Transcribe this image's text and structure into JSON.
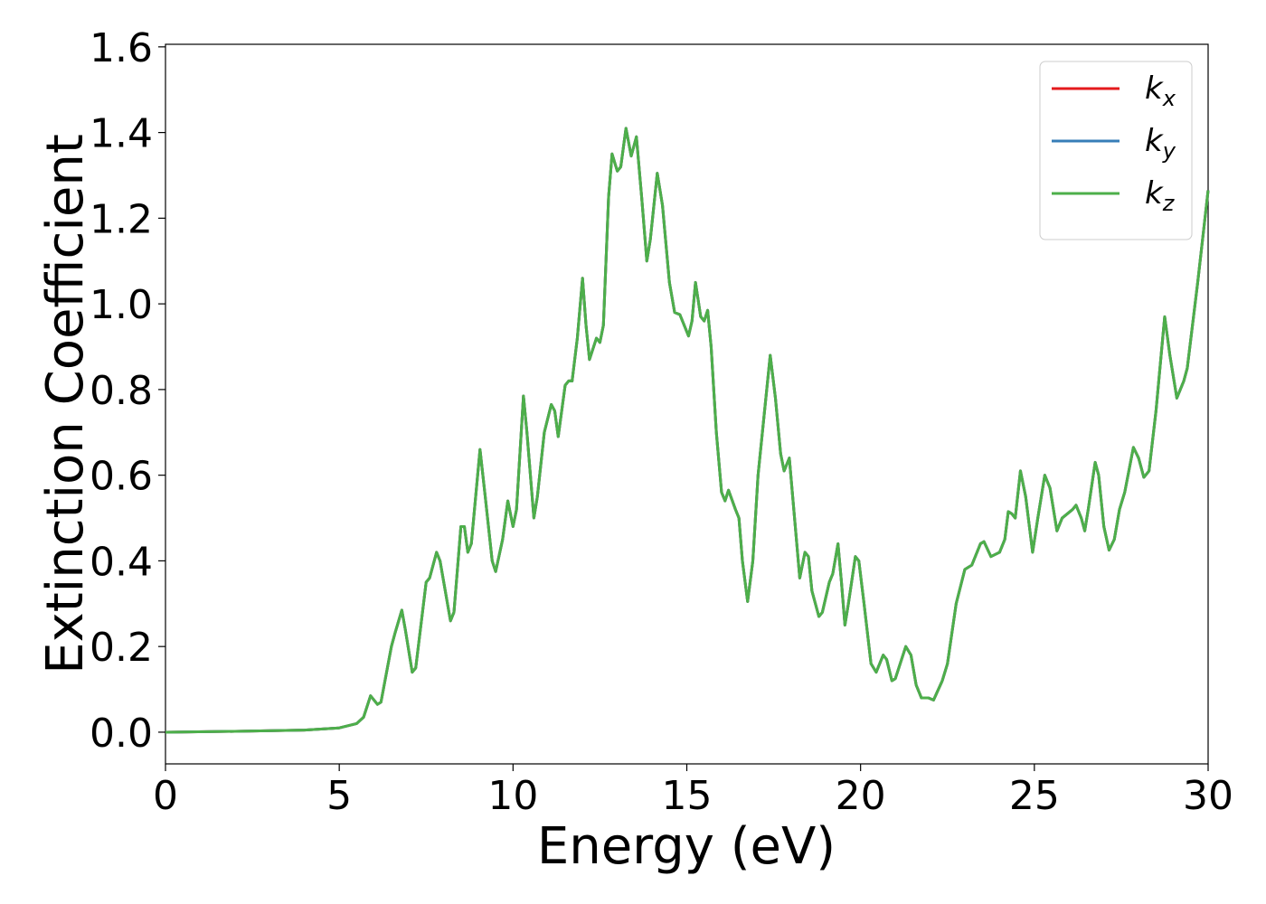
{
  "chart_data": {
    "type": "line",
    "xlabel": "Energy (eV)",
    "ylabel": "Extinction Coefficient",
    "xlim": [
      0,
      30
    ],
    "ylim": [
      -0.074,
      1.606
    ],
    "xticks": [
      0,
      5,
      10,
      15,
      20,
      25,
      30
    ],
    "yticks": [
      {
        "value": 0,
        "label": "0.0"
      },
      0.2,
      0.4,
      0.6,
      0.8,
      {
        "value": 1,
        "label": "1.0"
      },
      1.2,
      1.4,
      1.6
    ],
    "legend": "upper right",
    "x": [
      0,
      2,
      4,
      5,
      5.5,
      5.7,
      5.9,
      6.1,
      6.2,
      6.5,
      6.6,
      6.8,
      6.9,
      7.1,
      7.2,
      7.5,
      7.6,
      7.8,
      7.9,
      8.2,
      8.3,
      8.5,
      8.6,
      8.7,
      8.8,
      9.05,
      9.2,
      9.4,
      9.5,
      9.7,
      9.85,
      10.0,
      10.1,
      10.3,
      10.4,
      10.6,
      10.7,
      10.9,
      11.1,
      11.2,
      11.3,
      11.5,
      11.6,
      11.7,
      11.85,
      12.0,
      12.1,
      12.2,
      12.4,
      12.5,
      12.6,
      12.75,
      12.85,
      13.0,
      13.1,
      13.25,
      13.4,
      13.55,
      13.7,
      13.85,
      13.95,
      14.15,
      14.3,
      14.5,
      14.65,
      14.8,
      15.05,
      15.15,
      15.25,
      15.4,
      15.5,
      15.6,
      15.7,
      15.85,
      16.0,
      16.1,
      16.2,
      16.4,
      16.5,
      16.6,
      16.75,
      16.9,
      17.05,
      17.2,
      17.4,
      17.55,
      17.7,
      17.8,
      17.95,
      18.1,
      18.25,
      18.4,
      18.5,
      18.6,
      18.8,
      18.9,
      19.1,
      19.2,
      19.35,
      19.45,
      19.55,
      19.65,
      19.85,
      19.95,
      20.1,
      20.3,
      20.45,
      20.65,
      20.75,
      20.9,
      21.0,
      21.3,
      21.45,
      21.6,
      21.75,
      21.95,
      22.1,
      22.35,
      22.5,
      22.75,
      23.0,
      23.2,
      23.45,
      23.55,
      23.75,
      24.0,
      24.15,
      24.25,
      24.35,
      24.45,
      24.6,
      24.75,
      24.95,
      25.1,
      25.3,
      25.45,
      25.65,
      25.8,
      25.95,
      26.1,
      26.2,
      26.35,
      26.45,
      26.55,
      26.75,
      26.85,
      27.0,
      27.15,
      27.3,
      27.45,
      27.6,
      27.85,
      28.0,
      28.15,
      28.3,
      28.5,
      28.75,
      28.9,
      29.1,
      29.3,
      29.4,
      29.7,
      30
    ],
    "series": [
      {
        "name": "kx",
        "color": "#e41a1c",
        "values": [
          0,
          0.002,
          0.005,
          0.01,
          0.02,
          0.035,
          0.085,
          0.065,
          0.07,
          0.2,
          0.23,
          0.285,
          0.24,
          0.14,
          0.15,
          0.35,
          0.36,
          0.42,
          0.4,
          0.26,
          0.28,
          0.48,
          0.48,
          0.42,
          0.44,
          0.66,
          0.55,
          0.4,
          0.375,
          0.45,
          0.54,
          0.48,
          0.52,
          0.785,
          0.7,
          0.5,
          0.55,
          0.7,
          0.765,
          0.75,
          0.69,
          0.81,
          0.82,
          0.82,
          0.92,
          1.06,
          0.95,
          0.87,
          0.92,
          0.91,
          0.95,
          1.25,
          1.35,
          1.31,
          1.32,
          1.41,
          1.345,
          1.39,
          1.25,
          1.1,
          1.15,
          1.305,
          1.23,
          1.05,
          0.98,
          0.975,
          0.925,
          0.96,
          1.05,
          0.97,
          0.96,
          0.985,
          0.9,
          0.7,
          0.56,
          0.54,
          0.565,
          0.52,
          0.5,
          0.4,
          0.305,
          0.4,
          0.6,
          0.72,
          0.88,
          0.78,
          0.65,
          0.61,
          0.64,
          0.5,
          0.36,
          0.42,
          0.41,
          0.33,
          0.27,
          0.28,
          0.35,
          0.37,
          0.44,
          0.35,
          0.25,
          0.3,
          0.41,
          0.4,
          0.3,
          0.16,
          0.14,
          0.18,
          0.17,
          0.12,
          0.125,
          0.2,
          0.18,
          0.11,
          0.08,
          0.08,
          0.075,
          0.12,
          0.16,
          0.3,
          0.38,
          0.39,
          0.44,
          0.445,
          0.41,
          0.42,
          0.45,
          0.515,
          0.51,
          0.5,
          0.61,
          0.55,
          0.42,
          0.5,
          0.6,
          0.57,
          0.47,
          0.5,
          0.51,
          0.52,
          0.53,
          0.5,
          0.47,
          0.52,
          0.63,
          0.6,
          0.48,
          0.425,
          0.45,
          0.52,
          0.56,
          0.665,
          0.64,
          0.595,
          0.61,
          0.75,
          0.97,
          0.88,
          0.78,
          0.82,
          0.85,
          1.05,
          1.265
        ]
      },
      {
        "name": "ky",
        "color": "#377eb8",
        "values": [
          0,
          0.002,
          0.005,
          0.01,
          0.02,
          0.035,
          0.085,
          0.065,
          0.07,
          0.2,
          0.23,
          0.285,
          0.24,
          0.14,
          0.15,
          0.35,
          0.36,
          0.42,
          0.4,
          0.26,
          0.28,
          0.48,
          0.48,
          0.42,
          0.44,
          0.66,
          0.55,
          0.4,
          0.375,
          0.45,
          0.54,
          0.48,
          0.52,
          0.785,
          0.7,
          0.5,
          0.55,
          0.7,
          0.765,
          0.75,
          0.69,
          0.81,
          0.82,
          0.82,
          0.92,
          1.06,
          0.95,
          0.87,
          0.92,
          0.91,
          0.95,
          1.25,
          1.35,
          1.31,
          1.32,
          1.41,
          1.345,
          1.39,
          1.25,
          1.1,
          1.15,
          1.305,
          1.23,
          1.05,
          0.98,
          0.975,
          0.925,
          0.96,
          1.05,
          0.97,
          0.96,
          0.985,
          0.9,
          0.7,
          0.56,
          0.54,
          0.565,
          0.52,
          0.5,
          0.4,
          0.305,
          0.4,
          0.6,
          0.72,
          0.88,
          0.78,
          0.65,
          0.61,
          0.64,
          0.5,
          0.36,
          0.42,
          0.41,
          0.33,
          0.27,
          0.28,
          0.35,
          0.37,
          0.44,
          0.35,
          0.25,
          0.3,
          0.41,
          0.4,
          0.3,
          0.16,
          0.14,
          0.18,
          0.17,
          0.12,
          0.125,
          0.2,
          0.18,
          0.11,
          0.08,
          0.08,
          0.075,
          0.12,
          0.16,
          0.3,
          0.38,
          0.39,
          0.44,
          0.445,
          0.41,
          0.42,
          0.45,
          0.515,
          0.51,
          0.5,
          0.61,
          0.55,
          0.42,
          0.5,
          0.6,
          0.57,
          0.47,
          0.5,
          0.51,
          0.52,
          0.53,
          0.5,
          0.47,
          0.52,
          0.63,
          0.6,
          0.48,
          0.425,
          0.45,
          0.52,
          0.56,
          0.665,
          0.64,
          0.595,
          0.61,
          0.75,
          0.97,
          0.88,
          0.78,
          0.82,
          0.85,
          1.05,
          1.265
        ]
      },
      {
        "name": "kz",
        "color": "#4daf4a",
        "values": [
          0,
          0.002,
          0.005,
          0.01,
          0.02,
          0.035,
          0.085,
          0.065,
          0.07,
          0.2,
          0.23,
          0.285,
          0.24,
          0.14,
          0.15,
          0.35,
          0.36,
          0.42,
          0.4,
          0.26,
          0.28,
          0.48,
          0.48,
          0.42,
          0.44,
          0.66,
          0.55,
          0.4,
          0.375,
          0.45,
          0.54,
          0.48,
          0.52,
          0.785,
          0.7,
          0.5,
          0.55,
          0.7,
          0.765,
          0.75,
          0.69,
          0.81,
          0.82,
          0.82,
          0.92,
          1.06,
          0.95,
          0.87,
          0.92,
          0.91,
          0.95,
          1.25,
          1.35,
          1.31,
          1.32,
          1.41,
          1.345,
          1.39,
          1.25,
          1.1,
          1.15,
          1.305,
          1.23,
          1.05,
          0.98,
          0.975,
          0.925,
          0.96,
          1.05,
          0.97,
          0.96,
          0.985,
          0.9,
          0.7,
          0.56,
          0.54,
          0.565,
          0.52,
          0.5,
          0.4,
          0.305,
          0.4,
          0.6,
          0.72,
          0.88,
          0.78,
          0.65,
          0.61,
          0.64,
          0.5,
          0.36,
          0.42,
          0.41,
          0.33,
          0.27,
          0.28,
          0.35,
          0.37,
          0.44,
          0.35,
          0.25,
          0.3,
          0.41,
          0.4,
          0.3,
          0.16,
          0.14,
          0.18,
          0.17,
          0.12,
          0.125,
          0.2,
          0.18,
          0.11,
          0.08,
          0.08,
          0.075,
          0.12,
          0.16,
          0.3,
          0.38,
          0.39,
          0.44,
          0.445,
          0.41,
          0.42,
          0.45,
          0.515,
          0.51,
          0.5,
          0.61,
          0.55,
          0.42,
          0.5,
          0.6,
          0.57,
          0.47,
          0.5,
          0.51,
          0.52,
          0.53,
          0.5,
          0.47,
          0.52,
          0.63,
          0.6,
          0.48,
          0.425,
          0.45,
          0.52,
          0.56,
          0.665,
          0.64,
          0.595,
          0.61,
          0.75,
          0.97,
          0.88,
          0.78,
          0.82,
          0.85,
          1.05,
          1.265
        ]
      }
    ]
  }
}
